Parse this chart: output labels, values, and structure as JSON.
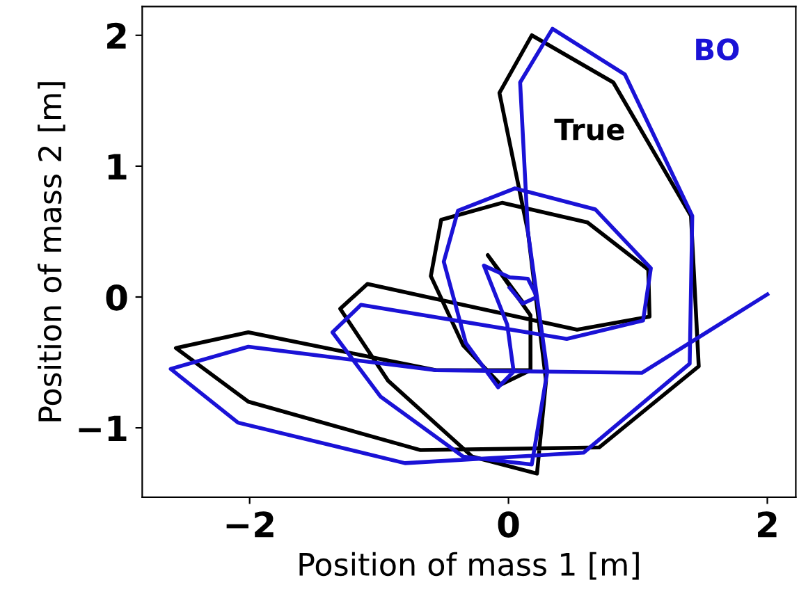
{
  "chart_data": {
    "type": "line",
    "xlabel": "Position of mass 1 [m]",
    "ylabel": "Position of mass 2 [m]",
    "xlim": [
      -2.83,
      2.22
    ],
    "ylim": [
      -1.53,
      2.22
    ],
    "xticks": [
      {
        "value": -2,
        "label": "−2"
      },
      0,
      2
    ],
    "yticks": [
      {
        "value": -1,
        "label": "−1"
      },
      0,
      1,
      2
    ],
    "grid": false,
    "legend": false,
    "marker": "none",
    "line_style": "solid",
    "series": [
      {
        "name": "True",
        "color": "#000000",
        "x": [
          0.11,
          -0.16,
          0.17,
          0.17,
          -0.06,
          -0.35,
          -0.6,
          -0.52,
          -0.05,
          0.61,
          1.08,
          1.09,
          0.53,
          -1.09,
          -1.3,
          -0.93,
          -0.28,
          0.22,
          0.29,
          0.15,
          -0.07,
          0.18,
          0.81,
          1.41,
          1.47,
          0.7,
          -0.68,
          -2.01,
          -2.57,
          -2.01,
          -0.56,
          0.17
        ],
        "values": [
          -0.04,
          0.32,
          -0.14,
          -0.56,
          -0.67,
          -0.37,
          0.16,
          0.59,
          0.72,
          0.57,
          0.21,
          -0.15,
          -0.25,
          0.1,
          -0.09,
          -0.64,
          -1.22,
          -1.35,
          -0.64,
          0.5,
          1.56,
          2.0,
          1.64,
          0.62,
          -0.53,
          -1.15,
          -1.17,
          -0.8,
          -0.39,
          -0.27,
          -0.56,
          -0.56
        ]
      },
      {
        "name": "BO",
        "color": "#1a12d6",
        "x": [
          2.0,
          1.03,
          -0.56,
          -2.01,
          -2.61,
          -2.09,
          -0.8,
          0.58,
          1.4,
          1.42,
          0.9,
          0.34,
          0.09,
          0.15,
          0.3,
          0.18,
          -0.35,
          -0.99,
          -1.36,
          -1.14,
          0.45,
          1.04,
          1.1,
          0.67,
          0.05,
          -0.39,
          -0.5,
          -0.33,
          -0.08,
          0.04,
          -0.01,
          -0.19,
          0.01,
          0.15,
          0.22,
          0.11,
          0.01
        ],
        "values": [
          0.02,
          -0.58,
          -0.56,
          -0.38,
          -0.55,
          -0.96,
          -1.27,
          -1.19,
          -0.51,
          0.62,
          1.7,
          2.05,
          1.64,
          0.5,
          -0.57,
          -1.28,
          -1.22,
          -0.76,
          -0.27,
          -0.06,
          -0.32,
          -0.18,
          0.22,
          0.67,
          0.83,
          0.66,
          0.27,
          -0.35,
          -0.69,
          -0.57,
          -0.21,
          0.24,
          0.15,
          0.14,
          0.0,
          -0.05,
          0.07
        ]
      }
    ]
  }
}
